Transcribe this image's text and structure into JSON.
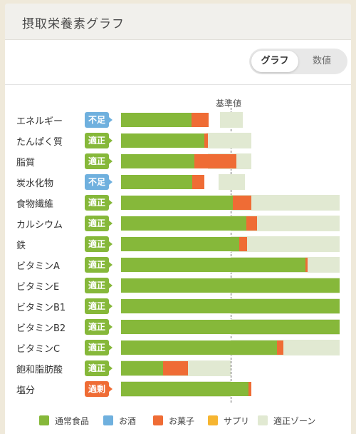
{
  "header": {
    "title": "摂取栄養素グラフ"
  },
  "view_toggle": {
    "graph_label": "グラフ",
    "values_label": "数値",
    "selected": "グラフ"
  },
  "baseline_label": "基準値",
  "colors": {
    "food": "#86b83a",
    "alcohol": "#6fb0de",
    "snack": "#ef6c35",
    "supplement": "#f6b531",
    "zone": "#e1e9d2"
  },
  "nutrients": [
    {
      "name": "エネルギー",
      "status": "不足",
      "status_type": "insufficient",
      "food": 0.64,
      "snack": 0.16,
      "zone": [
        0.9,
        1.11
      ]
    },
    {
      "name": "たんぱく質",
      "status": "適正",
      "status_type": "adequate",
      "food": 0.76,
      "snack": 0.03,
      "zone": [
        0.78,
        1.19
      ]
    },
    {
      "name": "脂質",
      "status": "適正",
      "status_type": "adequate",
      "food": 0.67,
      "snack": 0.38,
      "zone": [
        0.79,
        1.19
      ]
    },
    {
      "name": "炭水化物",
      "status": "不足",
      "status_type": "insufficient",
      "food": 0.65,
      "snack": 0.11,
      "zone": [
        0.89,
        1.13
      ]
    },
    {
      "name": "食物繊維",
      "status": "適正",
      "status_type": "adequate",
      "food": 1.02,
      "snack": 0.17,
      "zone": [
        1.0,
        2.0
      ]
    },
    {
      "name": "カルシウム",
      "status": "適正",
      "status_type": "adequate",
      "food": 1.14,
      "snack": 0.1,
      "zone": [
        1.0,
        2.0
      ]
    },
    {
      "name": "鉄",
      "status": "適正",
      "status_type": "adequate",
      "food": 1.08,
      "snack": 0.07,
      "zone": [
        1.0,
        2.0
      ]
    },
    {
      "name": "ビタミンA",
      "status": "適正",
      "status_type": "adequate",
      "food": 1.68,
      "snack": 0.02,
      "zone": [
        1.0,
        2.0
      ]
    },
    {
      "name": "ビタミンE",
      "status": "適正",
      "status_type": "adequate",
      "food": 2.0,
      "snack": 0.0,
      "zone": [
        1.0,
        2.0
      ]
    },
    {
      "name": "ビタミンB1",
      "status": "適正",
      "status_type": "adequate",
      "food": 2.0,
      "snack": 0.0,
      "zone": [
        1.0,
        2.0
      ]
    },
    {
      "name": "ビタミンB2",
      "status": "適正",
      "status_type": "adequate",
      "food": 2.0,
      "snack": 0.0,
      "zone": [
        1.0,
        2.0
      ]
    },
    {
      "name": "ビタミンC",
      "status": "適正",
      "status_type": "adequate",
      "food": 1.42,
      "snack": 0.06,
      "zone": [
        1.0,
        2.0
      ]
    },
    {
      "name": "飽和脂肪酸",
      "status": "適正",
      "status_type": "adequate",
      "food": 0.38,
      "snack": 0.23,
      "zone": [
        0.0,
        1.0
      ]
    },
    {
      "name": "塩分",
      "status": "過剰",
      "status_type": "excess",
      "food": 1.16,
      "snack": 0.03,
      "zone": [
        0.0,
        1.0
      ]
    }
  ],
  "legend": [
    {
      "label": "通常食品",
      "key": "food"
    },
    {
      "label": "お酒",
      "key": "alcohol"
    },
    {
      "label": "お菓子",
      "key": "snack"
    },
    {
      "label": "サプリ",
      "key": "supplement"
    },
    {
      "label": "適正ゾーン",
      "key": "zone"
    }
  ]
}
